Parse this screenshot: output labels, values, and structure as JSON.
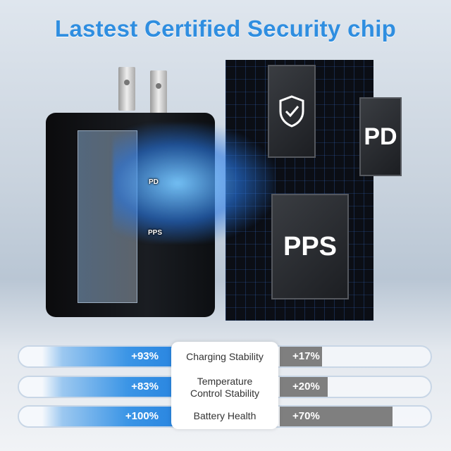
{
  "title": "Lastest Certified Security chip",
  "charger": {
    "labels": [
      "PD",
      "PPS"
    ]
  },
  "chips": [
    {
      "name": "security",
      "icon": "shield-check-icon"
    },
    {
      "name": "pd",
      "label": "PD"
    },
    {
      "name": "pps",
      "label": "PPS"
    }
  ],
  "comparison": [
    {
      "label": "Charging Stability",
      "ours": "+93%",
      "other": "+17%",
      "other_value": 17
    },
    {
      "label": "Temperature Control Stability",
      "ours": "+83%",
      "other": "+20%",
      "other_value": 20
    },
    {
      "label": "Battery Health",
      "ours": "+100%",
      "other": "+70%",
      "other_value": 70
    }
  ],
  "colors": {
    "accent": "#2f8ee0",
    "other": "#7f7f7f"
  }
}
